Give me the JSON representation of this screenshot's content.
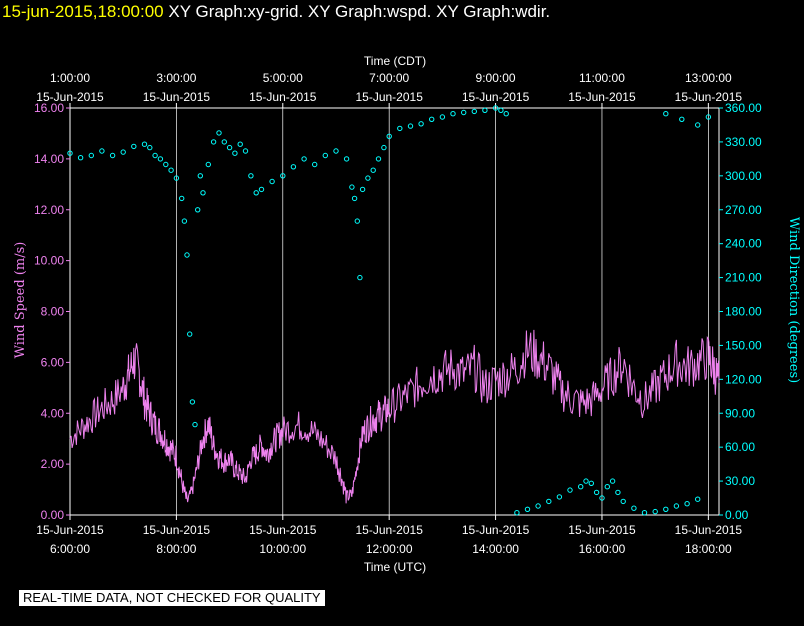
{
  "header": {
    "timestamp": "15-jun-2015,18:00:00",
    "graphs": [
      "XY Graph:xy-grid.",
      "XY Graph:wspd.",
      "XY Graph:wdir."
    ]
  },
  "notice": "REAL-TIME DATA, NOT CHECKED FOR QUALITY",
  "colors": {
    "speed": "#ee82ee",
    "direction": "#00ffff",
    "axis_text": "#ffffff",
    "grid": "#ffffff"
  },
  "chart_data": {
    "type": "line",
    "grid": true,
    "xlim_hours_utc": [
      6,
      18.2
    ],
    "top_axis": {
      "label": "Time (CDT)",
      "ticks": [
        {
          "hour_utc": 6,
          "time": "1:00:00",
          "date": "15-Jun-2015"
        },
        {
          "hour_utc": 8,
          "time": "3:00:00",
          "date": "15-Jun-2015"
        },
        {
          "hour_utc": 10,
          "time": "5:00:00",
          "date": "15-Jun-2015"
        },
        {
          "hour_utc": 12,
          "time": "7:00:00",
          "date": "15-Jun-2015"
        },
        {
          "hour_utc": 14,
          "time": "9:00:00",
          "date": "15-Jun-2015"
        },
        {
          "hour_utc": 16,
          "time": "11:00:00",
          "date": "15-Jun-2015"
        },
        {
          "hour_utc": 18,
          "time": "13:00:00",
          "date": "15-Jun-2015"
        }
      ]
    },
    "bottom_axis": {
      "label": "Time (UTC)",
      "ticks": [
        {
          "hour_utc": 6,
          "time": "6:00:00",
          "date": "15-Jun-2015"
        },
        {
          "hour_utc": 8,
          "time": "8:00:00",
          "date": "15-Jun-2015"
        },
        {
          "hour_utc": 10,
          "time": "10:00:00",
          "date": "15-Jun-2015"
        },
        {
          "hour_utc": 12,
          "time": "12:00:00",
          "date": "15-Jun-2015"
        },
        {
          "hour_utc": 14,
          "time": "14:00:00",
          "date": "15-Jun-2015"
        },
        {
          "hour_utc": 16,
          "time": "16:00:00",
          "date": "15-Jun-2015"
        },
        {
          "hour_utc": 18,
          "time": "18:00:00",
          "date": "15-Jun-2015"
        }
      ]
    },
    "left_axis": {
      "label": "Wind Speed (m/s)",
      "ylim": [
        0,
        16
      ],
      "ticks": [
        "0.00",
        "2.00",
        "4.00",
        "6.00",
        "8.00",
        "10.00",
        "12.00",
        "14.00",
        "16.00"
      ]
    },
    "right_axis": {
      "label": "Wind Direction (degrees)",
      "ylim": [
        0,
        360
      ],
      "ticks": [
        "0.00",
        "30.00",
        "60.00",
        "90.00",
        "120.00",
        "150.00",
        "180.00",
        "210.00",
        "240.00",
        "270.00",
        "300.00",
        "330.00",
        "360.00"
      ]
    },
    "series": [
      {
        "name": "Wind Speed (m/s)",
        "axis": "left",
        "style": "line",
        "points": [
          [
            6.0,
            3.0
          ],
          [
            6.2,
            3.4
          ],
          [
            6.4,
            3.8
          ],
          [
            6.6,
            4.2
          ],
          [
            6.8,
            4.5
          ],
          [
            7.0,
            5.0
          ],
          [
            7.1,
            5.5
          ],
          [
            7.2,
            6.1
          ],
          [
            7.3,
            5.6
          ],
          [
            7.4,
            4.5
          ],
          [
            7.5,
            4.0
          ],
          [
            7.6,
            3.5
          ],
          [
            7.7,
            3.3
          ],
          [
            7.8,
            2.9
          ],
          [
            7.9,
            2.6
          ],
          [
            8.0,
            2.3
          ],
          [
            8.1,
            1.3
          ],
          [
            8.2,
            0.5
          ],
          [
            8.3,
            1.0
          ],
          [
            8.4,
            2.0
          ],
          [
            8.5,
            3.0
          ],
          [
            8.6,
            3.6
          ],
          [
            8.7,
            2.7
          ],
          [
            8.8,
            2.3
          ],
          [
            8.9,
            2.1
          ],
          [
            9.0,
            2.2
          ],
          [
            9.1,
            1.8
          ],
          [
            9.2,
            1.6
          ],
          [
            9.3,
            1.4
          ],
          [
            9.4,
            2.2
          ],
          [
            9.5,
            2.4
          ],
          [
            9.6,
            2.8
          ],
          [
            9.7,
            2.4
          ],
          [
            9.8,
            2.8
          ],
          [
            9.9,
            3.1
          ],
          [
            10.0,
            3.3
          ],
          [
            10.2,
            3.5
          ],
          [
            10.4,
            3.5
          ],
          [
            10.6,
            3.2
          ],
          [
            10.8,
            2.8
          ],
          [
            11.0,
            2.2
          ],
          [
            11.1,
            1.5
          ],
          [
            11.2,
            0.7
          ],
          [
            11.3,
            0.8
          ],
          [
            11.4,
            2.0
          ],
          [
            11.5,
            3.2
          ],
          [
            11.6,
            3.5
          ],
          [
            11.7,
            3.8
          ],
          [
            11.8,
            3.9
          ],
          [
            11.9,
            4.0
          ],
          [
            12.0,
            4.2
          ],
          [
            12.2,
            4.5
          ],
          [
            12.4,
            4.8
          ],
          [
            12.6,
            5.2
          ],
          [
            12.8,
            5.5
          ],
          [
            13.0,
            5.6
          ],
          [
            13.2,
            5.8
          ],
          [
            13.4,
            5.5
          ],
          [
            13.6,
            5.8
          ],
          [
            13.8,
            5.0
          ],
          [
            14.0,
            5.3
          ],
          [
            14.2,
            5.5
          ],
          [
            14.4,
            5.8
          ],
          [
            14.6,
            6.5
          ],
          [
            14.8,
            6.2
          ],
          [
            15.0,
            5.8
          ],
          [
            15.2,
            5.0
          ],
          [
            15.4,
            4.6
          ],
          [
            15.6,
            4.4
          ],
          [
            15.8,
            4.5
          ],
          [
            16.0,
            5.0
          ],
          [
            16.2,
            5.5
          ],
          [
            16.4,
            6.0
          ],
          [
            16.6,
            5.0
          ],
          [
            16.8,
            4.5
          ],
          [
            17.0,
            5.0
          ],
          [
            17.2,
            5.5
          ],
          [
            17.4,
            6.0
          ],
          [
            17.6,
            5.8
          ],
          [
            17.8,
            6.0
          ],
          [
            18.0,
            6.2
          ],
          [
            18.1,
            5.8
          ],
          [
            18.2,
            5.2
          ]
        ]
      },
      {
        "name": "Wind Direction (degrees)",
        "axis": "right",
        "style": "markers",
        "points": [
          [
            6.0,
            320
          ],
          [
            6.2,
            316
          ],
          [
            6.4,
            318
          ],
          [
            6.6,
            322
          ],
          [
            6.8,
            318
          ],
          [
            7.0,
            321
          ],
          [
            7.2,
            326
          ],
          [
            7.4,
            328
          ],
          [
            7.5,
            325
          ],
          [
            7.6,
            318
          ],
          [
            7.7,
            315
          ],
          [
            7.8,
            310
          ],
          [
            7.9,
            305
          ],
          [
            8.0,
            298
          ],
          [
            8.1,
            280
          ],
          [
            8.15,
            260
          ],
          [
            8.2,
            230
          ],
          [
            8.25,
            160
          ],
          [
            8.3,
            100
          ],
          [
            8.35,
            80
          ],
          [
            8.4,
            270
          ],
          [
            8.45,
            300
          ],
          [
            8.5,
            285
          ],
          [
            8.6,
            310
          ],
          [
            8.7,
            330
          ],
          [
            8.8,
            338
          ],
          [
            8.9,
            330
          ],
          [
            9.0,
            325
          ],
          [
            9.1,
            320
          ],
          [
            9.2,
            328
          ],
          [
            9.3,
            322
          ],
          [
            9.4,
            300
          ],
          [
            9.5,
            285
          ],
          [
            9.6,
            288
          ],
          [
            9.8,
            295
          ],
          [
            10.0,
            300
          ],
          [
            10.2,
            308
          ],
          [
            10.4,
            315
          ],
          [
            10.6,
            310
          ],
          [
            10.8,
            318
          ],
          [
            11.0,
            322
          ],
          [
            11.2,
            315
          ],
          [
            11.3,
            290
          ],
          [
            11.35,
            280
          ],
          [
            11.4,
            260
          ],
          [
            11.45,
            210
          ],
          [
            11.5,
            288
          ],
          [
            11.6,
            298
          ],
          [
            11.7,
            305
          ],
          [
            11.8,
            315
          ],
          [
            11.9,
            325
          ],
          [
            12.0,
            335
          ],
          [
            12.2,
            342
          ],
          [
            12.4,
            344
          ],
          [
            12.6,
            346
          ],
          [
            12.8,
            350
          ],
          [
            13.0,
            352
          ],
          [
            13.2,
            355
          ],
          [
            13.4,
            356
          ],
          [
            13.6,
            357
          ],
          [
            13.8,
            358
          ],
          [
            14.0,
            360
          ],
          [
            14.1,
            358
          ],
          [
            14.2,
            355
          ],
          [
            14.4,
            2
          ],
          [
            14.6,
            5
          ],
          [
            14.8,
            8
          ],
          [
            15.0,
            12
          ],
          [
            15.2,
            16
          ],
          [
            15.4,
            22
          ],
          [
            15.6,
            25
          ],
          [
            15.7,
            30
          ],
          [
            15.8,
            28
          ],
          [
            15.9,
            20
          ],
          [
            16.0,
            15
          ],
          [
            16.1,
            25
          ],
          [
            16.2,
            30
          ],
          [
            16.3,
            20
          ],
          [
            16.4,
            12
          ],
          [
            16.6,
            6
          ],
          [
            16.8,
            2
          ],
          [
            17.0,
            3
          ],
          [
            17.2,
            5
          ],
          [
            17.4,
            8
          ],
          [
            17.6,
            10
          ],
          [
            17.8,
            14
          ],
          [
            17.2,
            355
          ],
          [
            17.5,
            350
          ],
          [
            17.8,
            345
          ],
          [
            18.0,
            352
          ]
        ]
      }
    ]
  }
}
